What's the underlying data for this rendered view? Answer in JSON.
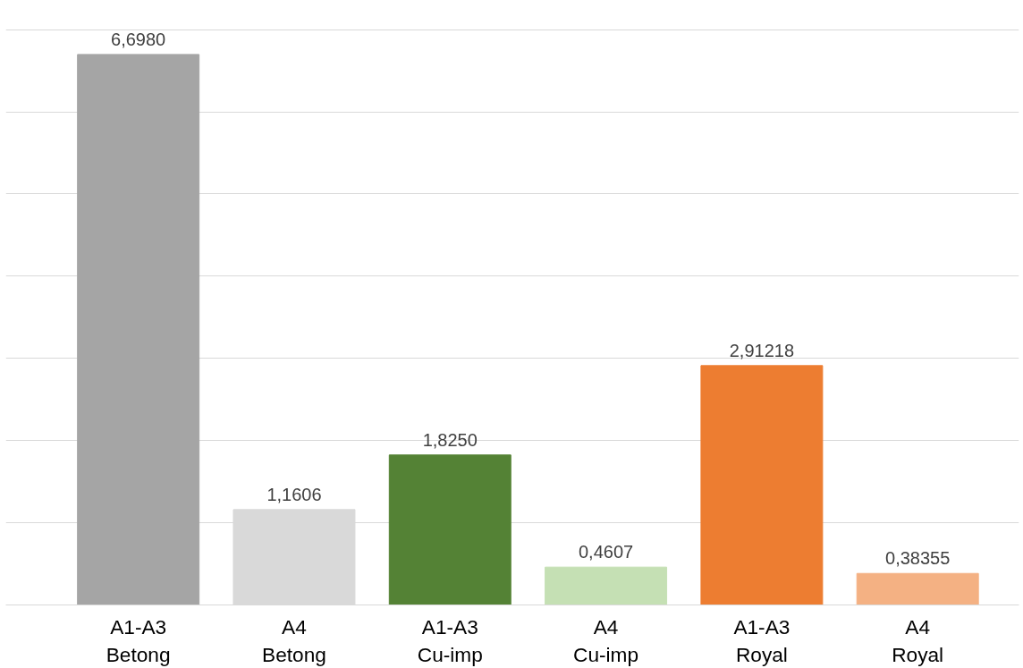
{
  "chart_data": {
    "type": "bar",
    "categories": [
      "A1-A3 Betong",
      "A4 Betong",
      "A1-A3 Cu-imp",
      "A4 Cu-imp",
      "A1-A3 Royal",
      "A4 Royal"
    ],
    "values": [
      6.698,
      1.1606,
      1.825,
      0.4607,
      2.91218,
      0.38355
    ],
    "colors": [
      "#a5a5a5",
      "#d9d9d9",
      "#548235",
      "#c5e0b4",
      "#ed7d31",
      "#f4b183"
    ],
    "value_labels": [
      "6,6980",
      "1,1606",
      "1,8250",
      "0,4607",
      "2,91218",
      "0,38355"
    ],
    "grid": "y",
    "tick_labels": "x"
  }
}
